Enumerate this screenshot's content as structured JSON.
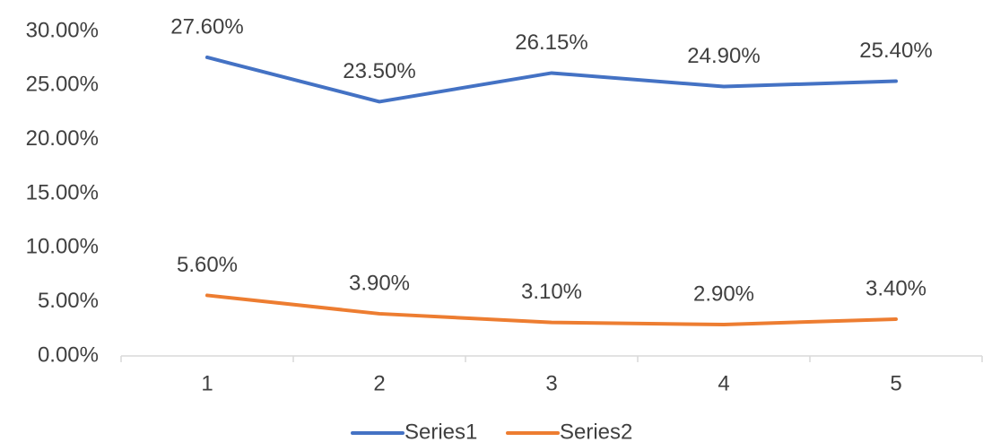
{
  "chart_data": {
    "type": "line",
    "categories": [
      "1",
      "2",
      "3",
      "4",
      "5"
    ],
    "series": [
      {
        "name": "Series1",
        "color": "#4472c4",
        "values": [
          27.6,
          23.5,
          26.15,
          24.9,
          25.4
        ],
        "value_labels": [
          "27.60%",
          "23.50%",
          "26.15%",
          "24.90%",
          "25.40%"
        ]
      },
      {
        "name": "Series2",
        "color": "#ed7d31",
        "values": [
          5.6,
          3.9,
          3.1,
          2.9,
          3.4
        ],
        "value_labels": [
          "5.60%",
          "3.90%",
          "3.10%",
          "2.90%",
          "3.40%"
        ]
      }
    ],
    "ylim": [
      0,
      30
    ],
    "yticks": [
      {
        "value": 0,
        "label": "0.00%"
      },
      {
        "value": 5,
        "label": "5.00%"
      },
      {
        "value": 10,
        "label": "10.00%"
      },
      {
        "value": 15,
        "label": "15.00%"
      },
      {
        "value": 20,
        "label": "20.00%"
      },
      {
        "value": 25,
        "label": "25.00%"
      },
      {
        "value": 30,
        "label": "30.00%"
      }
    ],
    "grid": false,
    "legend": "bottom"
  }
}
